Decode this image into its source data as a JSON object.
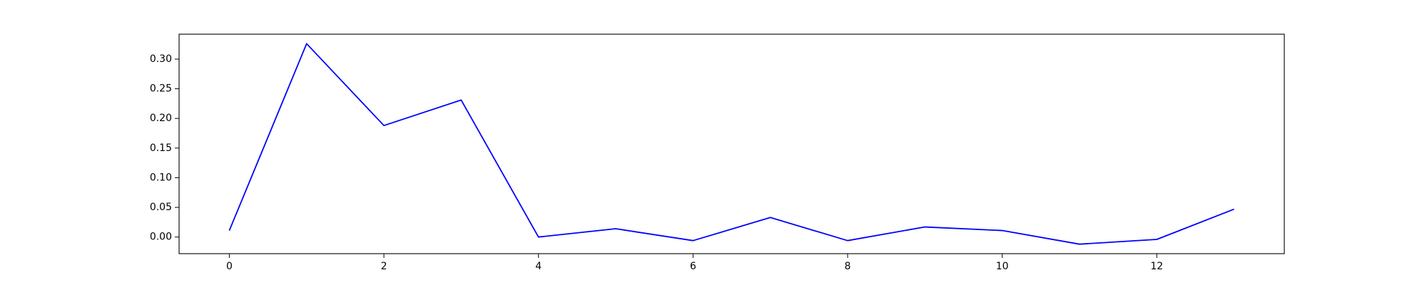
{
  "chart_data": {
    "type": "line",
    "title": "",
    "xlabel": "",
    "ylabel": "",
    "xlim": [
      -0.65,
      13.65
    ],
    "ylim": [
      -0.028,
      0.342
    ],
    "x_ticks": [
      0,
      2,
      4,
      6,
      8,
      10,
      12
    ],
    "y_ticks": [
      0.0,
      0.05,
      0.1,
      0.15,
      0.2,
      0.25,
      0.3
    ],
    "y_tick_decimals": 2,
    "grid": false,
    "legend": "none",
    "series": [
      {
        "color": "#0000ff",
        "x": [
          0,
          1,
          2,
          3,
          4,
          5,
          6,
          7,
          8,
          9,
          10,
          11,
          12,
          13
        ],
        "values": [
          0.011,
          0.326,
          0.188,
          0.231,
          0.0,
          0.014,
          -0.006,
          0.033,
          -0.006,
          0.017,
          0.011,
          -0.012,
          -0.004,
          0.047
        ]
      }
    ]
  }
}
